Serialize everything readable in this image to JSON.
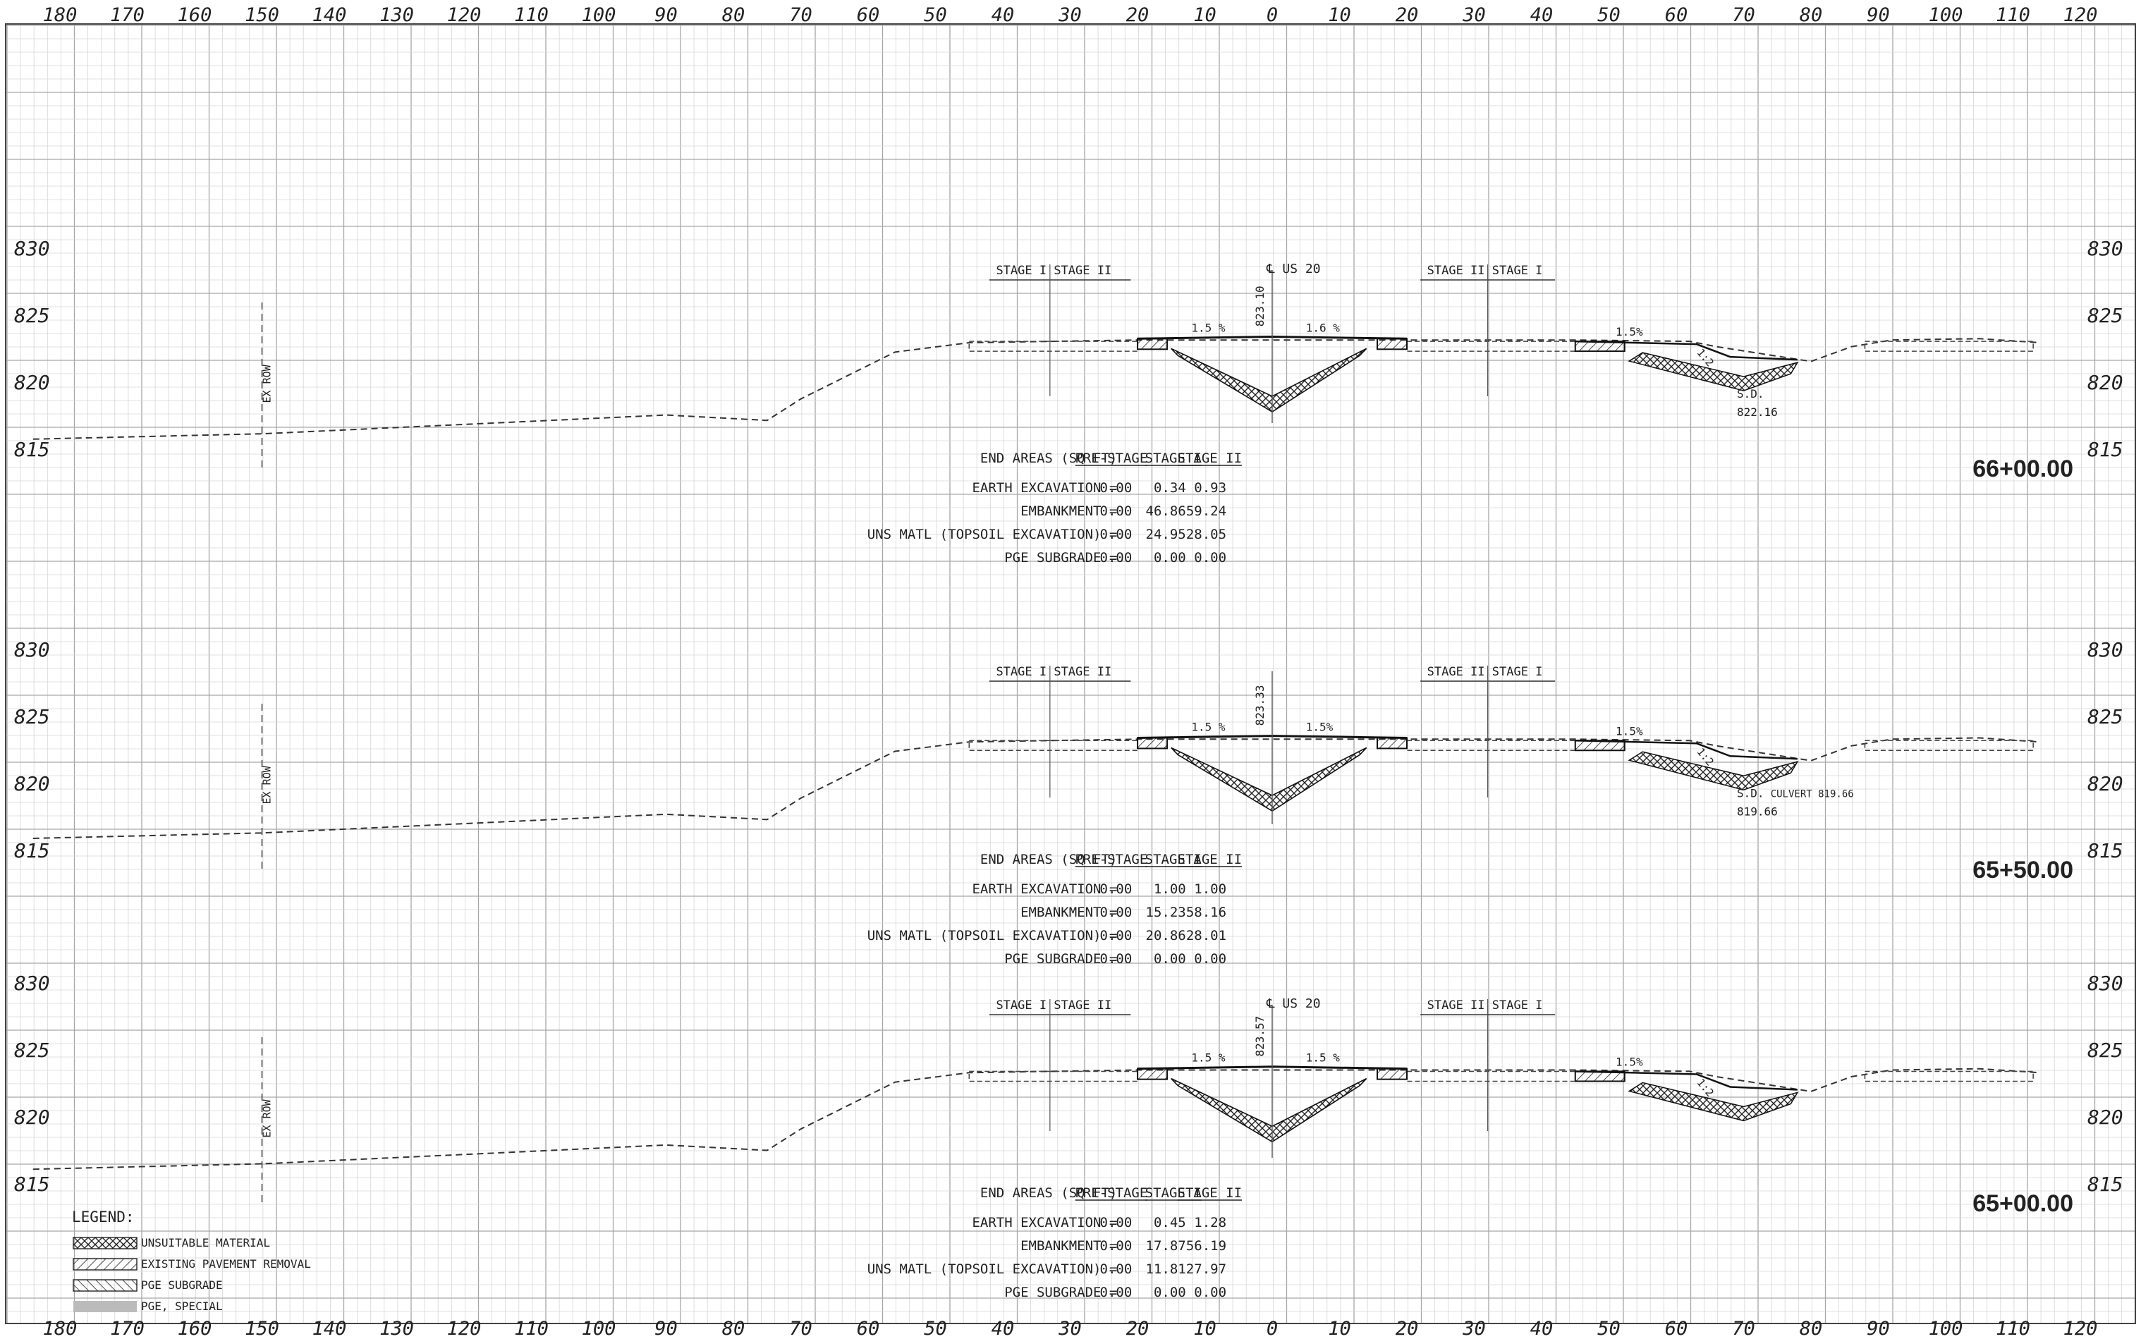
{
  "x_scale": {
    "top": [
      "180",
      "170",
      "160",
      "150",
      "140",
      "130",
      "120",
      "110",
      "100",
      "90",
      "80",
      "70",
      "60",
      "50",
      "40",
      "30",
      "20",
      "10",
      "0",
      "10",
      "20",
      "30",
      "40",
      "50",
      "60",
      "70",
      "80",
      "90",
      "100",
      "110",
      "120"
    ],
    "bottom": [
      "180",
      "170",
      "160",
      "150",
      "140",
      "130",
      "120",
      "110",
      "100",
      "90",
      "80",
      "70",
      "60",
      "50",
      "40",
      "30",
      "20",
      "10",
      "0",
      "10",
      "20",
      "30",
      "40",
      "50",
      "60",
      "70",
      "80",
      "90",
      "100",
      "110",
      "120"
    ]
  },
  "sections": [
    {
      "station": "66+00.00",
      "elev_labels": [
        "830",
        "825",
        "820",
        "815"
      ],
      "centerline_label": "℄ US 20",
      "centerline_elev": "823.10",
      "stage_left": "STAGE I  STAGE II",
      "stage_right": "STAGE II  STAGE I",
      "ex_row": "EX ROW",
      "slopes": [
        "1.5 %",
        "1.6 %",
        "1.5%",
        "1:2"
      ],
      "sd_label": "S.D.",
      "sd_elev": "822.16",
      "table": {
        "title": "END AREAS (SQ FT)",
        "headers": [
          "PRE-STAGE",
          "STAGE I",
          "STAGE II"
        ],
        "rows": [
          {
            "label": "EARTH EXCAVATION =",
            "values": [
              "0.00",
              "0.34",
              "0.93"
            ]
          },
          {
            "label": "EMBANKMENT =",
            "values": [
              "0.00",
              "46.86",
              "59.24"
            ]
          },
          {
            "label": "UNS MATL (TOPSOIL EXCAVATION) =",
            "values": [
              "0.00",
              "24.95",
              "28.05"
            ]
          },
          {
            "label": "PGE SUBGRADE =",
            "values": [
              "0.00",
              "0.00",
              "0.00"
            ]
          }
        ]
      }
    },
    {
      "station": "65+50.00",
      "elev_labels": [
        "830",
        "825",
        "820",
        "815"
      ],
      "centerline_label": "",
      "centerline_elev": "823.33",
      "stage_left": "STAGE I  STAGE II",
      "stage_right": "STAGE II  STAGE I",
      "ex_row": "EX ROW",
      "slopes": [
        "1.5 %",
        "1.5%",
        "1.5%",
        "1:2"
      ],
      "sd_label": "S.D.",
      "sd_elev": "819.66",
      "culvert_label": "CULVERT 819.66",
      "table": {
        "title": "END AREAS (SQ FT)",
        "headers": [
          "PRE-STAGE",
          "STAGE I",
          "STAGE II"
        ],
        "rows": [
          {
            "label": "EARTH EXCAVATION =",
            "values": [
              "0.00",
              "1.00",
              "1.00"
            ]
          },
          {
            "label": "EMBANKMENT =",
            "values": [
              "0.00",
              "15.23",
              "58.16"
            ]
          },
          {
            "label": "UNS MATL (TOPSOIL EXCAVATION) =",
            "values": [
              "0.00",
              "20.86",
              "28.01"
            ]
          },
          {
            "label": "PGE SUBGRADE =",
            "values": [
              "0.00",
              "0.00",
              "0.00"
            ]
          }
        ]
      }
    },
    {
      "station": "65+00.00",
      "elev_labels": [
        "830",
        "825",
        "820",
        "815"
      ],
      "centerline_label": "℄ US 20",
      "centerline_elev": "823.57",
      "stage_left": "STAGE I  STAGE II",
      "stage_right": "STAGE II  STAGE I",
      "ex_row": "EX ROW",
      "slopes": [
        "1.5 %",
        "1.5 %",
        "1.5%",
        "1:2"
      ],
      "table": {
        "title": "END AREAS (SQ FT)",
        "headers": [
          "PRE-STAGE",
          "STAGE I",
          "STAGE II"
        ],
        "rows": [
          {
            "label": "EARTH EXCAVATION =",
            "values": [
              "0.00",
              "0.45",
              "1.28"
            ]
          },
          {
            "label": "EMBANKMENT =",
            "values": [
              "0.00",
              "17.87",
              "56.19"
            ]
          },
          {
            "label": "UNS MATL (TOPSOIL EXCAVATION) =",
            "values": [
              "0.00",
              "11.81",
              "27.97"
            ]
          },
          {
            "label": "PGE SUBGRADE =",
            "values": [
              "0.00",
              "0.00",
              "0.00"
            ]
          }
        ]
      }
    }
  ],
  "legend": {
    "title": "LEGEND:",
    "items": [
      {
        "label": "UNSUITABLE MATERIAL",
        "pattern": "crosshatch"
      },
      {
        "label": "EXISTING PAVEMENT REMOVAL",
        "pattern": "diag-right"
      },
      {
        "label": "PGE SUBGRADE",
        "pattern": "diag-left"
      },
      {
        "label": "PGE, SPECIAL",
        "pattern": "solid-gray"
      }
    ]
  },
  "colors": {
    "grid_minor": "#cfcfcf",
    "grid_major": "#9a9a9a",
    "ink": "#222222"
  }
}
